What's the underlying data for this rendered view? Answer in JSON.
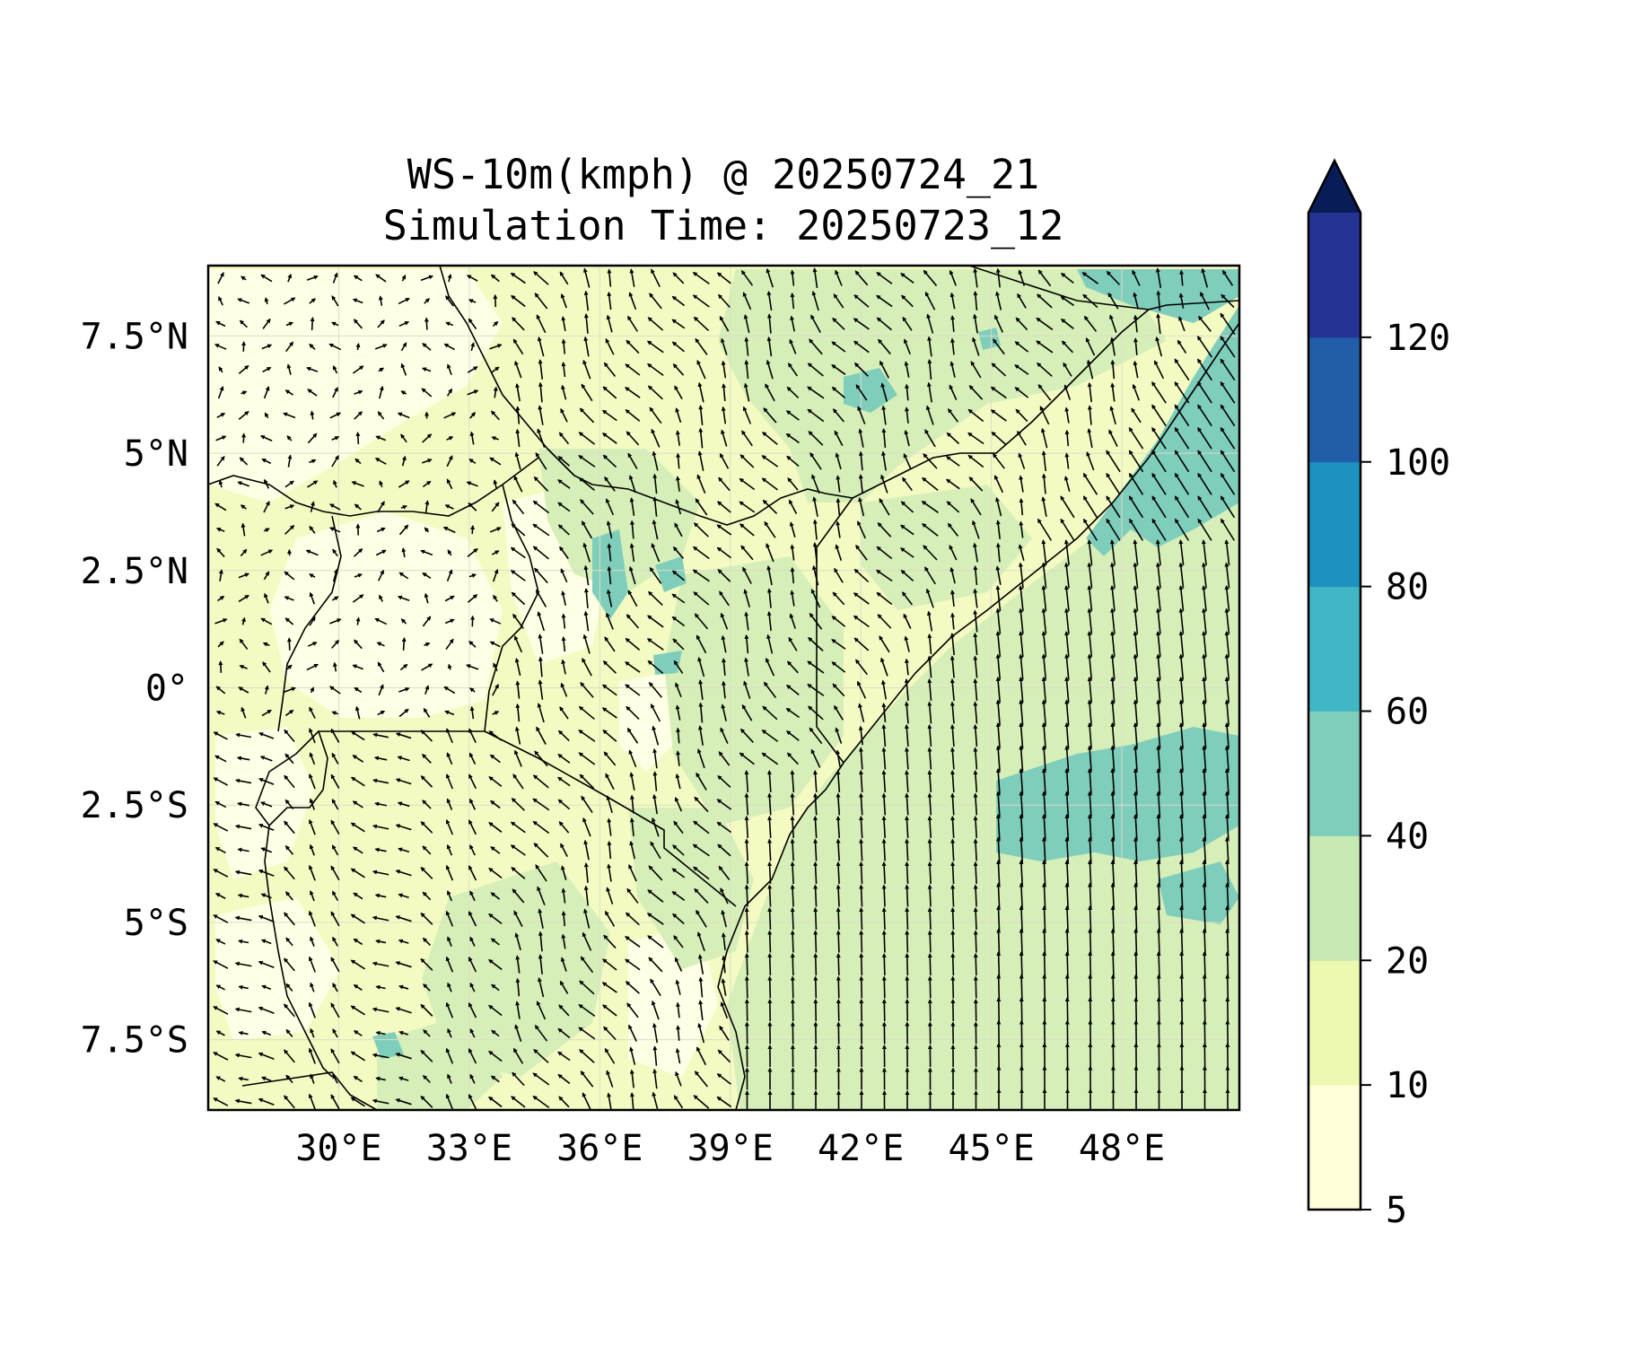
{
  "title": {
    "line1": "WS-10m(kmph) @ 20250724_21",
    "line2": "Simulation Time: 20250723_12"
  },
  "chart_data": {
    "type": "map",
    "variable": "WS-10m(kmph)",
    "valid_time": "20250724_21",
    "simulation_time": "20250723_12",
    "lon_range": [
      27.0,
      50.7
    ],
    "lat_range": [
      -9.0,
      9.0
    ],
    "x_ticks": [
      {
        "value": 30,
        "label": "30°E"
      },
      {
        "value": 33,
        "label": "33°E"
      },
      {
        "value": 36,
        "label": "36°E"
      },
      {
        "value": 39,
        "label": "39°E"
      },
      {
        "value": 42,
        "label": "42°E"
      },
      {
        "value": 45,
        "label": "45°E"
      },
      {
        "value": 48,
        "label": "48°E"
      }
    ],
    "y_ticks": [
      {
        "value": 7.5,
        "label": "7.5°N"
      },
      {
        "value": 5,
        "label": "5°N"
      },
      {
        "value": 2.5,
        "label": "2.5°N"
      },
      {
        "value": 0,
        "label": "0°"
      },
      {
        "value": -2.5,
        "label": "2.5°S"
      },
      {
        "value": -5,
        "label": "5°S"
      },
      {
        "value": -7.5,
        "label": "7.5°S"
      }
    ],
    "colorbar": {
      "levels": [
        5,
        10,
        20,
        40,
        60,
        80,
        100,
        120
      ],
      "labels": [
        "5",
        "10",
        "20",
        "40",
        "60",
        "80",
        "100",
        "120"
      ],
      "colors": [
        "#ffffd9",
        "#edf8b1",
        "#c7e9b4",
        "#7fcdbb",
        "#41b6c4",
        "#1d91c0",
        "#225ea8",
        "#253494"
      ],
      "extend_color": "#081d58",
      "extend": "max"
    },
    "fill_colors": {
      "calm": "#ffffe5",
      "light": "#f4fbc2",
      "moderate": "#d6efb8",
      "strong": "#7fcdbb"
    },
    "grid": true,
    "vectors": "wind arrows"
  }
}
